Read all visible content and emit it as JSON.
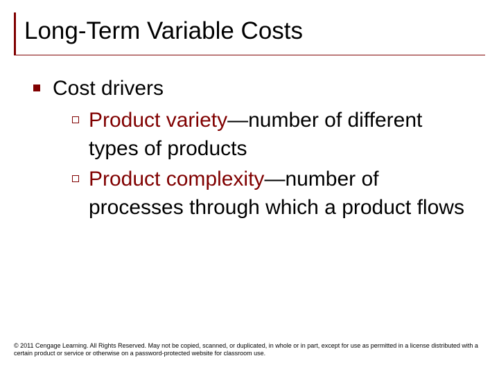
{
  "slide": {
    "title": "Long-Term Variable Costs",
    "title_color": "#000000",
    "title_fontsize": 35,
    "accent_color": "#800000",
    "background_color": "#ffffff",
    "body_fontsize": 30,
    "level1": {
      "bullet_color": "#800000",
      "text": "Cost drivers"
    },
    "level2": [
      {
        "accent_prefix": "Product variety",
        "rest": "—number of different types of products"
      },
      {
        "accent_prefix": "Product complexity",
        "rest": "—number of processes through which a product flows"
      }
    ],
    "footer": "© 2011 Cengage Learning. All Rights Reserved. May not be copied, scanned, or duplicated, in whole or in part, except for use as permitted in a license distributed with a certain product or service or otherwise on a password-protected website for classroom use."
  }
}
